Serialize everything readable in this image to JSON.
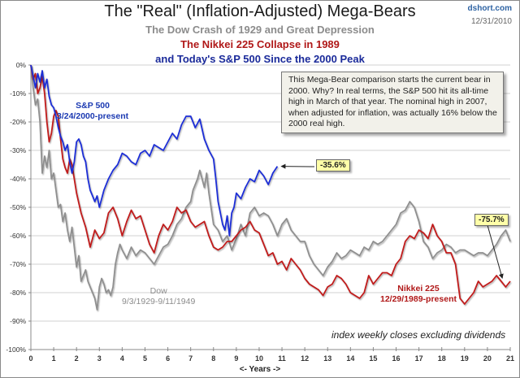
{
  "header": {
    "title": "The \"Real\" (Inflation-Adjusted) Mega-Bears",
    "subtitle_dow": "The Dow Crash of 1929 and Great Depression",
    "subtitle_nikkei": "The Nikkei 225 Collapse in 1989",
    "subtitle_sp": "and Today's S&P 500 Since the 2000 Peak",
    "brand": "dshort.com",
    "date": "12/31/2010"
  },
  "annotations": {
    "note": "This Mega-Bear comparison starts  the current bear in 2000.  Why? In real terms, the S&P 500 hit its all-time high in March of that year. The nominal high in 2007, when adjusted for inflation, was actually 16% below the 2000 real high.",
    "sp_callout": "-35.6%",
    "nikkei_callout": "-75.7%",
    "footnote": "index weekly closes excluding dividends",
    "sp_label": [
      "S&P 500",
      "3/24/2000-present"
    ],
    "dow_label": [
      "Dow",
      "9/3/1929-9/11/1949"
    ],
    "nikkei_label": [
      "Nikkei 225",
      "12/29/1989-present"
    ]
  },
  "colors": {
    "sp500": "#1f2fd6",
    "nikkei": "#c01a1a",
    "dow": "#8f8f8f",
    "grid": "#d0d0d0",
    "callout_bg": "#ffffa8",
    "note_bg": "#f2f1ea"
  },
  "chart_data": {
    "type": "line",
    "title": "The \"Real\" (Inflation-Adjusted) Mega-Bears",
    "xlabel": "<- Years ->",
    "ylabel": "",
    "xlim": [
      0,
      21
    ],
    "ylim": [
      -100,
      0
    ],
    "xticks": [
      "0",
      "1",
      "2",
      "3",
      "4",
      "5",
      "6",
      "7",
      "8",
      "9",
      "10",
      "11",
      "12",
      "13",
      "14",
      "15",
      "16",
      "17",
      "18",
      "19",
      "20",
      "21"
    ],
    "yticks": [
      "0%",
      "-10%",
      "-20%",
      "-30%",
      "-40%",
      "-50%",
      "-60%",
      "-70%",
      "-80%",
      "-90%",
      "-100%"
    ],
    "ytick_values": [
      0,
      -10,
      -20,
      -30,
      -40,
      -50,
      -60,
      -70,
      -80,
      -90,
      -100
    ],
    "grid": true,
    "series": [
      {
        "name": "Dow 9/3/1929-9/11/1949",
        "x": [
          0,
          0.1,
          0.2,
          0.3,
          0.4,
          0.5,
          0.6,
          0.7,
          0.8,
          0.9,
          1.0,
          1.1,
          1.2,
          1.3,
          1.4,
          1.5,
          1.6,
          1.7,
          1.8,
          1.9,
          2.0,
          2.1,
          2.2,
          2.3,
          2.4,
          2.5,
          2.6,
          2.7,
          2.8,
          2.9,
          3.0,
          3.1,
          3.2,
          3.3,
          3.4,
          3.5,
          3.6,
          3.7,
          3.8,
          3.9,
          4.0,
          4.2,
          4.4,
          4.6,
          4.8,
          5.0,
          5.2,
          5.4,
          5.6,
          5.8,
          6.0,
          6.2,
          6.4,
          6.6,
          6.8,
          7.0,
          7.1,
          7.2,
          7.3,
          7.4,
          7.5,
          7.6,
          7.7,
          7.8,
          8.0,
          8.2,
          8.4,
          8.6,
          8.8,
          9.0,
          9.2,
          9.4,
          9.6,
          9.8,
          10.0,
          10.2,
          10.4,
          10.6,
          10.8,
          11.0,
          11.2,
          11.4,
          11.6,
          11.8,
          12.0,
          12.2,
          12.4,
          12.6,
          12.8,
          13.0,
          13.2,
          13.4,
          13.6,
          13.8,
          14.0,
          14.2,
          14.4,
          14.6,
          14.8,
          15.0,
          15.2,
          15.4,
          15.6,
          15.8,
          16.0,
          16.2,
          16.4,
          16.6,
          16.8,
          17.0,
          17.2,
          17.4,
          17.6,
          17.8,
          18.0,
          18.2,
          18.4,
          18.6,
          18.8,
          19.0,
          19.2,
          19.4,
          19.6,
          19.8,
          20.0,
          20.2,
          20.4,
          20.6,
          20.8,
          21.0
        ],
        "values": [
          0,
          -8,
          -14,
          -12,
          -20,
          -38,
          -32,
          -36,
          -30,
          -40,
          -38,
          -44,
          -50,
          -49,
          -55,
          -52,
          -58,
          -62,
          -57,
          -64,
          -71,
          -67,
          -76,
          -74,
          -72,
          -76,
          -78,
          -80,
          -82,
          -86,
          -78,
          -75,
          -77,
          -80,
          -79,
          -81,
          -78,
          -70,
          -66,
          -63,
          -65,
          -68,
          -64,
          -67,
          -65,
          -66,
          -68,
          -70,
          -67,
          -64,
          -63,
          -60,
          -56,
          -54,
          -50,
          -48,
          -44,
          -42,
          -40,
          -37,
          -40,
          -43,
          -38,
          -45,
          -56,
          -58,
          -62,
          -60,
          -65,
          -61,
          -56,
          -60,
          -52,
          -50,
          -53,
          -52,
          -53,
          -56,
          -60,
          -56,
          -54,
          -58,
          -60,
          -62,
          -62,
          -67,
          -70,
          -72,
          -74,
          -71,
          -69,
          -66,
          -68,
          -67,
          -65,
          -66,
          -67,
          -64,
          -65,
          -62,
          -63,
          -62,
          -60,
          -58,
          -56,
          -52,
          -51,
          -48,
          -50,
          -55,
          -62,
          -64,
          -68,
          -66,
          -65,
          -63,
          -64,
          -66,
          -65,
          -65,
          -66,
          -67,
          -66,
          -66,
          -67,
          -65,
          -63,
          -60,
          -58,
          -62
        ],
        "color": "#8f8f8f"
      },
      {
        "name": "Nikkei 225 12/29/1989-present",
        "x": [
          0,
          0.1,
          0.2,
          0.3,
          0.4,
          0.5,
          0.6,
          0.7,
          0.8,
          0.9,
          1.0,
          1.1,
          1.2,
          1.3,
          1.4,
          1.5,
          1.6,
          1.7,
          1.8,
          1.9,
          2.0,
          2.2,
          2.4,
          2.6,
          2.8,
          3.0,
          3.2,
          3.4,
          3.6,
          3.8,
          4.0,
          4.2,
          4.4,
          4.6,
          4.8,
          5.0,
          5.2,
          5.4,
          5.6,
          5.8,
          6.0,
          6.2,
          6.4,
          6.6,
          6.8,
          7.0,
          7.2,
          7.4,
          7.6,
          7.8,
          8.0,
          8.2,
          8.4,
          8.6,
          8.8,
          9.0,
          9.2,
          9.4,
          9.6,
          9.8,
          10.0,
          10.2,
          10.4,
          10.6,
          10.8,
          11.0,
          11.2,
          11.4,
          11.6,
          11.8,
          12.0,
          12.2,
          12.4,
          12.6,
          12.8,
          13.0,
          13.2,
          13.4,
          13.6,
          13.8,
          14.0,
          14.2,
          14.4,
          14.6,
          14.8,
          15.0,
          15.2,
          15.4,
          15.6,
          15.8,
          16.0,
          16.2,
          16.4,
          16.6,
          16.8,
          17.0,
          17.2,
          17.4,
          17.6,
          17.8,
          18.0,
          18.2,
          18.4,
          18.6,
          18.8,
          19.0,
          19.2,
          19.4,
          19.6,
          19.8,
          20.0,
          20.2,
          20.4,
          20.6,
          20.8,
          21.0
        ],
        "values": [
          0,
          -5,
          -3,
          -10,
          -8,
          -4,
          -10,
          -20,
          -27,
          -24,
          -18,
          -16,
          -18,
          -26,
          -33,
          -36,
          -38,
          -33,
          -35,
          -40,
          -45,
          -52,
          -57,
          -64,
          -58,
          -61,
          -59,
          -52,
          -50,
          -54,
          -60,
          -55,
          -51,
          -54,
          -53,
          -58,
          -63,
          -66,
          -60,
          -56,
          -58,
          -55,
          -50,
          -52,
          -51,
          -55,
          -57,
          -56,
          -55,
          -60,
          -64,
          -65,
          -64,
          -62,
          -62,
          -60,
          -58,
          -57,
          -55,
          -58,
          -59,
          -63,
          -67,
          -66,
          -70,
          -69,
          -72,
          -68,
          -70,
          -72,
          -75,
          -77,
          -78,
          -79,
          -81,
          -78,
          -77,
          -74,
          -75,
          -77,
          -80,
          -81,
          -82,
          -80,
          -74,
          -77,
          -75,
          -73,
          -73,
          -74,
          -70,
          -68,
          -62,
          -60,
          -61,
          -58,
          -59,
          -61,
          -56,
          -60,
          -62,
          -66,
          -66,
          -70,
          -82,
          -84,
          -82,
          -80,
          -76,
          -78,
          -77,
          -76,
          -74,
          -76,
          -78,
          -76
        ],
        "color": "#c01a1a"
      },
      {
        "name": "S&P 500 3/24/2000-present",
        "x": [
          0,
          0.1,
          0.2,
          0.3,
          0.4,
          0.5,
          0.6,
          0.7,
          0.8,
          0.9,
          1.0,
          1.1,
          1.2,
          1.3,
          1.4,
          1.5,
          1.6,
          1.7,
          1.8,
          1.9,
          2.0,
          2.1,
          2.2,
          2.3,
          2.4,
          2.5,
          2.6,
          2.7,
          2.8,
          2.9,
          3.0,
          3.2,
          3.4,
          3.6,
          3.8,
          4.0,
          4.2,
          4.4,
          4.6,
          4.8,
          5.0,
          5.2,
          5.4,
          5.6,
          5.8,
          6.0,
          6.2,
          6.4,
          6.6,
          6.8,
          7.0,
          7.2,
          7.4,
          7.6,
          7.8,
          8.0,
          8.1,
          8.2,
          8.3,
          8.4,
          8.5,
          8.6,
          8.7,
          8.8,
          8.9,
          9.0,
          9.2,
          9.4,
          9.6,
          9.8,
          10.0,
          10.2,
          10.4,
          10.6,
          10.8
        ],
        "values": [
          0,
          -4,
          -8,
          -3,
          -6,
          -2,
          -8,
          -5,
          -11,
          -14,
          -15,
          -18,
          -22,
          -25,
          -27,
          -30,
          -28,
          -34,
          -38,
          -34,
          -27,
          -26,
          -28,
          -32,
          -34,
          -40,
          -44,
          -46,
          -48,
          -46,
          -50,
          -44,
          -40,
          -37,
          -35,
          -31,
          -32,
          -34,
          -35,
          -31,
          -30,
          -32,
          -28,
          -29,
          -30,
          -27,
          -24,
          -26,
          -21,
          -18,
          -18,
          -22,
          -19,
          -26,
          -30,
          -33,
          -40,
          -48,
          -52,
          -56,
          -58,
          -53,
          -60,
          -52,
          -50,
          -45,
          -47,
          -43,
          -40,
          -41,
          -37,
          -39,
          -42,
          -38,
          -35.6
        ],
        "color": "#1f2fd6"
      }
    ],
    "annotations": [
      {
        "series": "S&P 500",
        "text": "-35.6%",
        "value": -35.6
      },
      {
        "series": "Nikkei 225",
        "text": "-75.7%",
        "value": -75.7
      }
    ],
    "legend": "inline labels near each series"
  }
}
